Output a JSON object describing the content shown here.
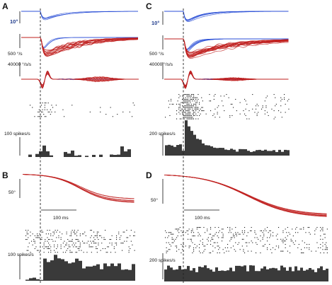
{
  "panels": [
    {
      "letter": "A",
      "position_label": "10°",
      "velocity_label": "500 °/s",
      "acceleration_label": "40000 °/s/s",
      "rate_label": "100 spikes/s"
    },
    {
      "letter": "B",
      "position_label": "50°",
      "time_label": "100 ms",
      "rate_label": "100 spikes/s"
    },
    {
      "letter": "C",
      "position_label": "10°",
      "velocity_label": "500 °/s",
      "acceleration_label": "40000 °/s/s",
      "rate_label": "200 spikes/s"
    },
    {
      "letter": "D",
      "position_label": "50°",
      "time_label": "100 ms",
      "rate_label": "200 spikes/s"
    }
  ],
  "colors": {
    "blue_traces": "#2a4fd6",
    "red_traces": "#c0201f",
    "histogram": "#3a3a3a",
    "raster": "#111111",
    "onset_line": "#222222"
  },
  "onset_marker": "dashed vertical line at movement onset"
}
